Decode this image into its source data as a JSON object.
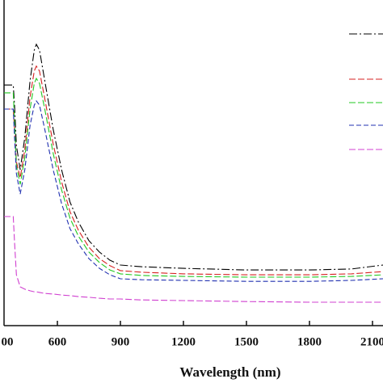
{
  "chart_data": {
    "type": "line",
    "xlabel": "Wavelength (nm)",
    "x": [
      346,
      390,
      396,
      405,
      423,
      445,
      470,
      490,
      500,
      515,
      540,
      580,
      620,
      660,
      700,
      750,
      800,
      850,
      900,
      1000,
      1200,
      1500,
      1800,
      2000,
      2150
    ],
    "series": [
      {
        "color": "#000000",
        "dash": "10 3 2 3",
        "values": [
          73.9,
          73.9,
          67.7,
          55.3,
          47.9,
          57.8,
          75.2,
          84.6,
          86.4,
          84.6,
          75.2,
          60.3,
          47.9,
          38.0,
          31.8,
          26.1,
          22.6,
          20.1,
          18.6,
          18.1,
          17.6,
          17.1,
          17.1,
          17.4,
          18.6
        ]
      },
      {
        "color": "#d62020",
        "dash": "8 3",
        "values": [
          66.5,
          66.5,
          60.3,
          50.4,
          45.4,
          54.1,
          70.2,
          78.2,
          79.7,
          78.2,
          69.7,
          55.8,
          44.2,
          35.0,
          29.3,
          24.1,
          20.6,
          18.4,
          16.9,
          16.4,
          15.9,
          15.6,
          15.6,
          15.9,
          16.6
        ]
      },
      {
        "color": "#22c822",
        "dash": "8 3",
        "values": [
          71.5,
          71.5,
          62.8,
          49.1,
          43.4,
          51.6,
          66.5,
          74.4,
          75.9,
          74.4,
          66.5,
          52.9,
          41.7,
          33.0,
          27.5,
          22.6,
          19.4,
          17.1,
          15.9,
          15.4,
          15.1,
          14.9,
          14.9,
          15.1,
          15.6
        ]
      },
      {
        "color": "#2030b0",
        "dash": "6 3",
        "values": [
          66.5,
          66.5,
          57.8,
          46.7,
          40.4,
          47.9,
          61.5,
          67.7,
          69.0,
          67.7,
          60.3,
          47.9,
          37.5,
          29.8,
          25.1,
          20.6,
          17.6,
          15.6,
          14.4,
          14.1,
          13.9,
          13.6,
          13.6,
          13.9,
          14.4
        ]
      },
      {
        "color": "#d040d0",
        "dash": "8 3",
        "values": [
          33.5,
          33.5,
          25.6,
          15.6,
          11.9,
          11.2,
          10.7,
          10.4,
          10.4,
          10.2,
          9.9,
          9.7,
          9.4,
          9.2,
          8.9,
          8.7,
          8.4,
          8.2,
          8.2,
          7.9,
          7.7,
          7.4,
          7.2,
          7.2,
          7.2
        ]
      }
    ],
    "xlim": [
      346,
      2150
    ],
    "ylim": [
      0,
      100
    ],
    "xticks": [
      {
        "value": 300,
        "label": "00"
      },
      600,
      900,
      1200,
      1500,
      1800,
      2100
    ]
  }
}
